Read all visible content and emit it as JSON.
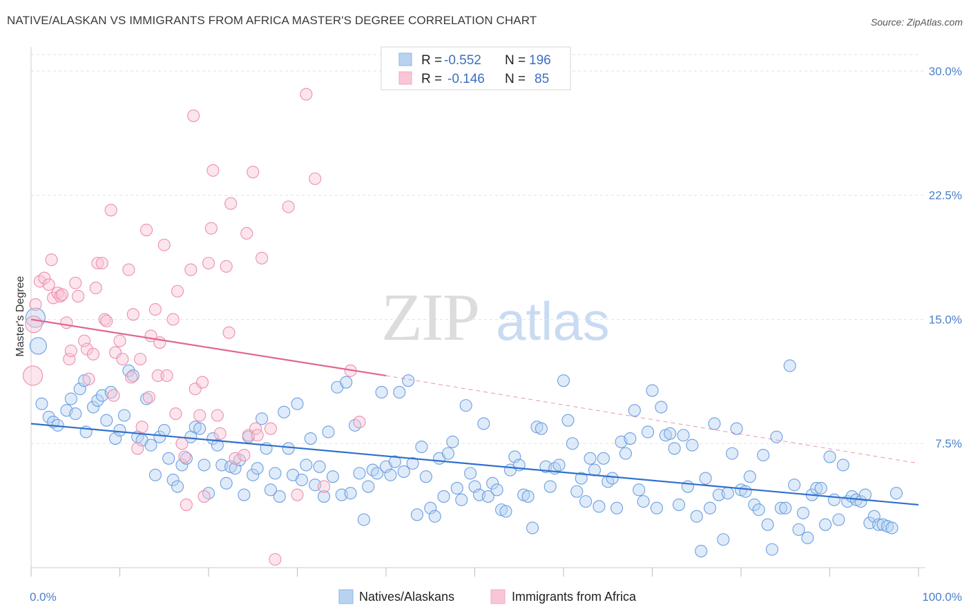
{
  "title": "NATIVE/ALASKAN VS IMMIGRANTS FROM AFRICA MASTER'S DEGREE CORRELATION CHART",
  "source": "Source: ZipAtlas.com",
  "watermark": {
    "zip": "ZIP",
    "atlas": "atlas"
  },
  "chart_data": {
    "type": "scatter",
    "title": "NATIVE/ALASKAN VS IMMIGRANTS FROM AFRICA MASTER'S DEGREE CORRELATION CHART",
    "xlabel": "",
    "ylabel": "Master's Degree",
    "xlim": [
      0,
      100
    ],
    "ylim": [
      0,
      31
    ],
    "x_tick_labels": [
      "0.0%",
      "100.0%"
    ],
    "y_ticks": [
      7.5,
      15.0,
      22.5,
      30.0
    ],
    "y_tick_labels": [
      "7.5%",
      "15.0%",
      "22.5%",
      "30.0%"
    ],
    "grid": true,
    "legend_position": "top-center",
    "legend": [
      {
        "r_label": "R =",
        "r_value": "-0.552",
        "n_label": "N =",
        "n_value": "196"
      },
      {
        "r_label": "R =",
        "r_value": "-0.146",
        "n_label": "N =",
        "n_value": "85"
      }
    ],
    "series": [
      {
        "name": "Natives/Alaskans",
        "color": "#8ab4e8",
        "line_color": "#2f6fcc",
        "trend": {
          "x": [
            0,
            100
          ],
          "y": [
            8.7,
            3.8
          ]
        },
        "points": [
          [
            0.5,
            15.1
          ],
          [
            0.8,
            13.4
          ],
          [
            1.2,
            9.9
          ],
          [
            2,
            9.1
          ],
          [
            2.5,
            8.8
          ],
          [
            3,
            8.6
          ],
          [
            4,
            9.5
          ],
          [
            4.5,
            10.2
          ],
          [
            5,
            9.3
          ],
          [
            5.5,
            10.8
          ],
          [
            6,
            11.3
          ],
          [
            6.2,
            8.2
          ],
          [
            7,
            9.7
          ],
          [
            7.5,
            10.1
          ],
          [
            8,
            10.4
          ],
          [
            8.5,
            8.9
          ],
          [
            9,
            10.6
          ],
          [
            9.5,
            7.8
          ],
          [
            10,
            8.3
          ],
          [
            10.5,
            9.2
          ],
          [
            11,
            11.9
          ],
          [
            11.5,
            11.6
          ],
          [
            12,
            7.9
          ],
          [
            12.5,
            7.7
          ],
          [
            13,
            10.2
          ],
          [
            13.5,
            7.4
          ],
          [
            14,
            5.6
          ],
          [
            14.5,
            7.9
          ],
          [
            15,
            8.3
          ],
          [
            15.5,
            6.6
          ],
          [
            16,
            5.3
          ],
          [
            16.5,
            4.9
          ],
          [
            17,
            6.2
          ],
          [
            17.5,
            6.6
          ],
          [
            18,
            7.9
          ],
          [
            18.5,
            8.5
          ],
          [
            19,
            8.4
          ],
          [
            19.5,
            6.2
          ],
          [
            20,
            4.5
          ],
          [
            20.5,
            7.8
          ],
          [
            21,
            7.4
          ],
          [
            21.5,
            6.2
          ],
          [
            22,
            5.1
          ],
          [
            22.5,
            6.1
          ],
          [
            23,
            6.0
          ],
          [
            23.5,
            6.5
          ],
          [
            24,
            4.4
          ],
          [
            24.5,
            7.9
          ],
          [
            25,
            5.6
          ],
          [
            25.5,
            6.0
          ],
          [
            26,
            9.0
          ],
          [
            26.5,
            7.2
          ],
          [
            27,
            4.7
          ],
          [
            27.5,
            5.7
          ],
          [
            28,
            4.3
          ],
          [
            28.5,
            9.4
          ],
          [
            29,
            7.2
          ],
          [
            29.5,
            5.6
          ],
          [
            30,
            9.9
          ],
          [
            30.5,
            5.3
          ],
          [
            31,
            6.2
          ],
          [
            31.5,
            7.8
          ],
          [
            32,
            5.0
          ],
          [
            32.5,
            6.1
          ],
          [
            33,
            4.3
          ],
          [
            33.5,
            8.2
          ],
          [
            34,
            5.5
          ],
          [
            34.5,
            10.9
          ],
          [
            35,
            4.4
          ],
          [
            35.5,
            11.2
          ],
          [
            36,
            4.5
          ],
          [
            36.5,
            8.6
          ],
          [
            37,
            5.7
          ],
          [
            37.5,
            2.9
          ],
          [
            38,
            4.9
          ],
          [
            38.5,
            5.9
          ],
          [
            39,
            5.7
          ],
          [
            39.5,
            10.6
          ],
          [
            40,
            6.1
          ],
          [
            40.5,
            5.6
          ],
          [
            41,
            6.4
          ],
          [
            41.5,
            10.6
          ],
          [
            42,
            5.8
          ],
          [
            42.5,
            11.3
          ],
          [
            43,
            6.3
          ],
          [
            43.5,
            3.2
          ],
          [
            44,
            7.3
          ],
          [
            44.5,
            5.5
          ],
          [
            45,
            3.6
          ],
          [
            45.5,
            3.1
          ],
          [
            46,
            6.6
          ],
          [
            46.5,
            4.3
          ],
          [
            47,
            6.9
          ],
          [
            47.5,
            7.6
          ],
          [
            48,
            4.8
          ],
          [
            48.5,
            4.1
          ],
          [
            49,
            9.8
          ],
          [
            49.5,
            5.7
          ],
          [
            50,
            4.9
          ],
          [
            50.5,
            4.4
          ],
          [
            51,
            8.7
          ],
          [
            51.5,
            4.3
          ],
          [
            52,
            5.1
          ],
          [
            52.5,
            4.7
          ],
          [
            53,
            3.5
          ],
          [
            53.5,
            3.4
          ],
          [
            54,
            5.9
          ],
          [
            54.5,
            6.7
          ],
          [
            55,
            6.2
          ],
          [
            55.5,
            4.4
          ],
          [
            56,
            4.3
          ],
          [
            56.5,
            2.4
          ],
          [
            57,
            8.5
          ],
          [
            57.5,
            8.4
          ],
          [
            58,
            6.1
          ],
          [
            58.5,
            4.9
          ],
          [
            59,
            6.0
          ],
          [
            59.5,
            6.2
          ],
          [
            60,
            11.3
          ],
          [
            60.5,
            8.9
          ],
          [
            61,
            7.5
          ],
          [
            61.5,
            4.6
          ],
          [
            62,
            5.4
          ],
          [
            62.5,
            4.0
          ],
          [
            63,
            6.6
          ],
          [
            63.5,
            5.9
          ],
          [
            64,
            3.7
          ],
          [
            64.5,
            6.6
          ],
          [
            65,
            5.2
          ],
          [
            65.5,
            5.4
          ],
          [
            66,
            3.6
          ],
          [
            66.5,
            7.6
          ],
          [
            67,
            6.9
          ],
          [
            67.5,
            7.8
          ],
          [
            68,
            9.5
          ],
          [
            68.5,
            4.7
          ],
          [
            69,
            4.0
          ],
          [
            69.5,
            8.2
          ],
          [
            70,
            10.7
          ],
          [
            70.5,
            3.6
          ],
          [
            71,
            9.7
          ],
          [
            71.5,
            8.0
          ],
          [
            72,
            8.1
          ],
          [
            72.5,
            7.2
          ],
          [
            73,
            3.8
          ],
          [
            73.5,
            8.0
          ],
          [
            74,
            4.9
          ],
          [
            74.5,
            7.4
          ],
          [
            75,
            3.1
          ],
          [
            75.5,
            1.0
          ],
          [
            76,
            5.4
          ],
          [
            76.5,
            3.6
          ],
          [
            77,
            8.7
          ],
          [
            77.5,
            4.4
          ],
          [
            78,
            1.7
          ],
          [
            78.5,
            4.5
          ],
          [
            79,
            6.9
          ],
          [
            79.5,
            8.4
          ],
          [
            80,
            4.7
          ],
          [
            80.5,
            4.6
          ],
          [
            81,
            5.5
          ],
          [
            81.5,
            3.8
          ],
          [
            82,
            3.5
          ],
          [
            82.5,
            6.8
          ],
          [
            83,
            2.6
          ],
          [
            83.5,
            1.1
          ],
          [
            84,
            7.9
          ],
          [
            84.5,
            3.6
          ],
          [
            85,
            3.6
          ],
          [
            85.5,
            12.2
          ],
          [
            86,
            5.0
          ],
          [
            86.5,
            2.3
          ],
          [
            87,
            3.3
          ],
          [
            87.5,
            1.8
          ],
          [
            88,
            4.4
          ],
          [
            88.5,
            4.8
          ],
          [
            89,
            4.8
          ],
          [
            89.5,
            2.6
          ],
          [
            90,
            6.7
          ],
          [
            90.5,
            4.1
          ],
          [
            91,
            2.9
          ],
          [
            91.5,
            6.2
          ],
          [
            92,
            4.0
          ],
          [
            92.5,
            4.3
          ],
          [
            93,
            4.1
          ],
          [
            93.5,
            4.0
          ],
          [
            94,
            4.4
          ],
          [
            94.5,
            2.7
          ],
          [
            95,
            3.1
          ],
          [
            95.5,
            2.6
          ],
          [
            96,
            2.6
          ],
          [
            96.5,
            2.5
          ],
          [
            97,
            2.4
          ],
          [
            97.5,
            4.5
          ]
        ]
      },
      {
        "name": "Immigrants from Africa",
        "color": "#f4a7bf",
        "line_color": "#e0668f",
        "trend": {
          "x": [
            0,
            40
          ],
          "y": [
            15.0,
            11.6
          ]
        },
        "trend_dashed": {
          "x": [
            40,
            100
          ],
          "y": [
            11.6,
            6.3
          ]
        },
        "points": [
          [
            0.2,
            11.6
          ],
          [
            0.3,
            14.7
          ],
          [
            0.5,
            15.9
          ],
          [
            1,
            17.3
          ],
          [
            1.5,
            17.5
          ],
          [
            2,
            17.1
          ],
          [
            2.3,
            18.6
          ],
          [
            2.5,
            16.3
          ],
          [
            3,
            16.6
          ],
          [
            3.3,
            16.4
          ],
          [
            3.5,
            16.5
          ],
          [
            4,
            14.8
          ],
          [
            4.3,
            12.6
          ],
          [
            4.5,
            13.1
          ],
          [
            5,
            17.2
          ],
          [
            5.3,
            16.4
          ],
          [
            6,
            13.7
          ],
          [
            6.3,
            13.2
          ],
          [
            6.5,
            11.4
          ],
          [
            7,
            12.9
          ],
          [
            7.3,
            16.9
          ],
          [
            7.5,
            18.4
          ],
          [
            8,
            18.4
          ],
          [
            8.3,
            15.0
          ],
          [
            8.5,
            14.9
          ],
          [
            9,
            21.6
          ],
          [
            9.3,
            10.4
          ],
          [
            9.5,
            13.0
          ],
          [
            10,
            13.7
          ],
          [
            10.3,
            12.6
          ],
          [
            11,
            18.0
          ],
          [
            11.3,
            11.5
          ],
          [
            11.5,
            15.3
          ],
          [
            12,
            7.2
          ],
          [
            12.3,
            12.6
          ],
          [
            12.5,
            8.5
          ],
          [
            13,
            20.4
          ],
          [
            13.3,
            10.3
          ],
          [
            13.5,
            14.0
          ],
          [
            14,
            15.6
          ],
          [
            14.3,
            11.6
          ],
          [
            14.5,
            13.6
          ],
          [
            15,
            19.5
          ],
          [
            15.3,
            11.6
          ],
          [
            16,
            15.0
          ],
          [
            16.3,
            9.3
          ],
          [
            16.5,
            16.7
          ],
          [
            17,
            7.5
          ],
          [
            17.3,
            6.7
          ],
          [
            17.5,
            3.8
          ],
          [
            18,
            18.0
          ],
          [
            18.3,
            27.3
          ],
          [
            18.5,
            10.8
          ],
          [
            19,
            9.2
          ],
          [
            19.3,
            11.2
          ],
          [
            19.5,
            4.3
          ],
          [
            20,
            18.4
          ],
          [
            20.3,
            20.5
          ],
          [
            20.5,
            24.0
          ],
          [
            21,
            9.2
          ],
          [
            21.3,
            8.1
          ],
          [
            22,
            18.2
          ],
          [
            22.3,
            14.2
          ],
          [
            22.5,
            22.0
          ],
          [
            23,
            6.6
          ],
          [
            24,
            6.8
          ],
          [
            24.3,
            20.2
          ],
          [
            24.5,
            8.0
          ],
          [
            25,
            23.9
          ],
          [
            25.3,
            8.4
          ],
          [
            25.5,
            8.0
          ],
          [
            26,
            18.7
          ],
          [
            27,
            8.4
          ],
          [
            27.5,
            0.5
          ],
          [
            29,
            21.8
          ],
          [
            30,
            4.4
          ],
          [
            31,
            28.6
          ],
          [
            32,
            23.5
          ],
          [
            33,
            4.9
          ],
          [
            36,
            11.9
          ],
          [
            37,
            8.8
          ]
        ]
      }
    ]
  },
  "bottom_legend": [
    {
      "label": "Natives/Alaskans"
    },
    {
      "label": "Immigrants from Africa"
    }
  ]
}
